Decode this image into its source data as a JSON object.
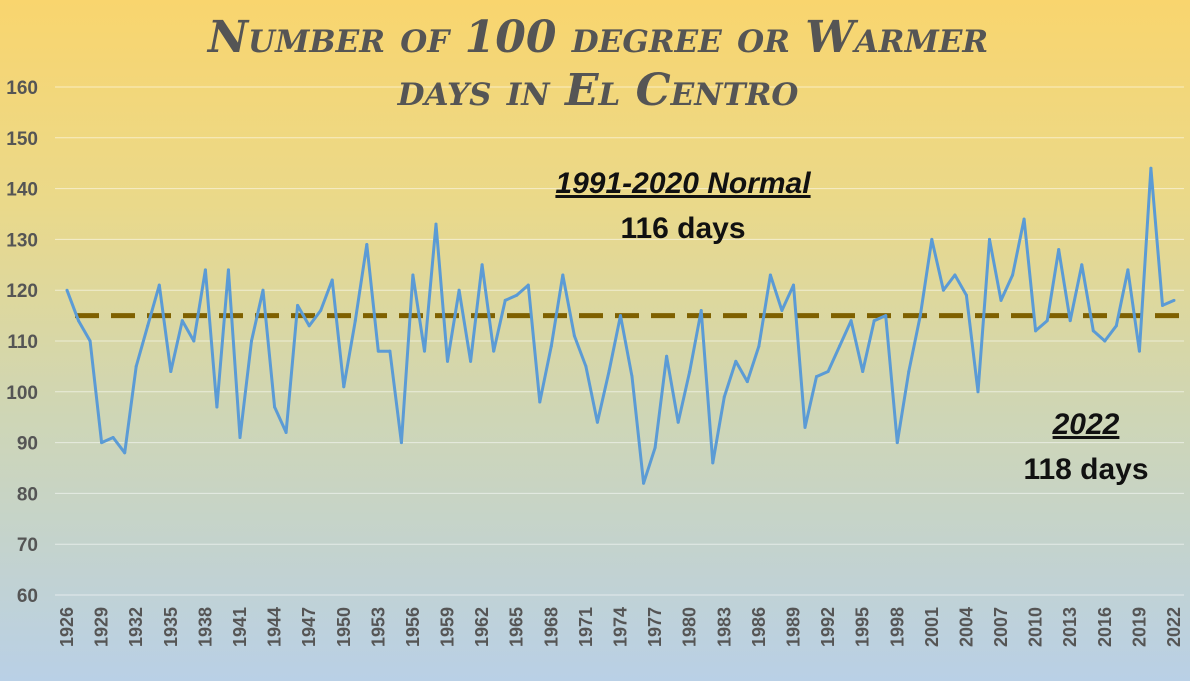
{
  "chart_data": {
    "type": "line",
    "title_lines": [
      "Number of 100 degree or Warmer",
      "days in El Centro"
    ],
    "xlabel": "",
    "ylabel": "",
    "ylim": [
      60,
      160
    ],
    "y_ticks": [
      60,
      70,
      80,
      90,
      100,
      110,
      120,
      130,
      140,
      150,
      160
    ],
    "x_tick_labels": [
      "1926",
      "1929",
      "1932",
      "1935",
      "1938",
      "1941",
      "1944",
      "1947",
      "1950",
      "1953",
      "1956",
      "1959",
      "1962",
      "1965",
      "1968",
      "1971",
      "1974",
      "1977",
      "1980",
      "1983",
      "1986",
      "1989",
      "1992",
      "1995",
      "1998",
      "2001",
      "2004",
      "2007",
      "2010",
      "2013",
      "2016",
      "2019",
      "2022"
    ],
    "grid": true,
    "colors": {
      "series": "#5b9bd5",
      "normal_line": "#7f6000",
      "text": "#555555"
    },
    "series": [
      {
        "name": "",
        "x": [
          1926,
          1927,
          1928,
          1929,
          1930,
          1931,
          1932,
          1933,
          1934,
          1935,
          1936,
          1937,
          1938,
          1939,
          1940,
          1941,
          1942,
          1943,
          1944,
          1945,
          1946,
          1947,
          1948,
          1949,
          1950,
          1951,
          1952,
          1953,
          1954,
          1955,
          1956,
          1957,
          1958,
          1959,
          1960,
          1961,
          1962,
          1963,
          1964,
          1965,
          1966,
          1967,
          1968,
          1969,
          1970,
          1971,
          1972,
          1973,
          1974,
          1975,
          1976,
          1977,
          1978,
          1979,
          1980,
          1981,
          1982,
          1983,
          1984,
          1985,
          1986,
          1987,
          1988,
          1989,
          1990,
          1991,
          1992,
          1993,
          1994,
          1995,
          1996,
          1997,
          1998,
          1999,
          2000,
          2001,
          2002,
          2003,
          2004,
          2005,
          2006,
          2007,
          2008,
          2009,
          2010,
          2011,
          2012,
          2013,
          2014,
          2015,
          2016,
          2017,
          2018,
          2019,
          2020,
          2021,
          2022
        ],
        "values": [
          120,
          114,
          110,
          90,
          91,
          88,
          105,
          113,
          121,
          104,
          114,
          110,
          124,
          97,
          124,
          91,
          110,
          120,
          97,
          92,
          117,
          113,
          116,
          122,
          101,
          114,
          129,
          108,
          108,
          90,
          123,
          108,
          133,
          106,
          120,
          106,
          125,
          108,
          118,
          119,
          121,
          98,
          109,
          123,
          111,
          105,
          94,
          104,
          115,
          103,
          82,
          89,
          107,
          94,
          104,
          116,
          86,
          99,
          106,
          102,
          109,
          123,
          116,
          121,
          93,
          103,
          104,
          109,
          114,
          104,
          114,
          115,
          90,
          104,
          115,
          130,
          120,
          123,
          119,
          100,
          130,
          118,
          123,
          134,
          112,
          114,
          128,
          114,
          125,
          112,
          110,
          113,
          124,
          108,
          144,
          117,
          118
        ]
      }
    ],
    "normal_line": {
      "value": 115
    },
    "annotations": [
      {
        "heading": "1991-2020 Normal",
        "value": "116 days"
      },
      {
        "heading": "2022",
        "value": "118 days"
      }
    ]
  }
}
